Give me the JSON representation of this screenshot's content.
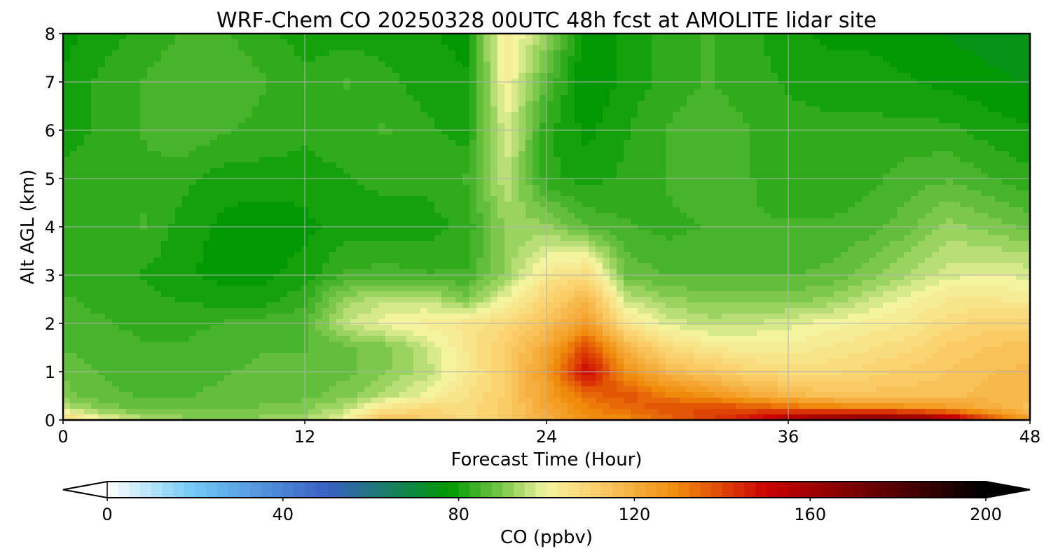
{
  "chart_data": {
    "type": "heatmap",
    "title": "WRF-Chem CO  20250328 00UTC 48h fcst at AMOLITE lidar site",
    "xlabel": "Forecast Time (Hour)",
    "ylabel": "Alt AGL (km)",
    "xlim": [
      0,
      48
    ],
    "ylim": [
      0,
      8
    ],
    "xticks": [
      0,
      12,
      24,
      36,
      48
    ],
    "yticks": [
      0,
      1,
      2,
      3,
      4,
      5,
      6,
      7,
      8
    ],
    "grid": true,
    "colorbar": {
      "label": "CO  (ppbv)",
      "min": 0,
      "max": 200,
      "ticks": [
        0,
        40,
        80,
        120,
        160,
        200
      ],
      "extend": "both",
      "stops": [
        {
          "v": 0,
          "c": "#ffffff"
        },
        {
          "v": 20,
          "c": "#6fc8f5"
        },
        {
          "v": 50,
          "c": "#3a5fc4"
        },
        {
          "v": 70,
          "c": "#0b8a3c"
        },
        {
          "v": 78,
          "c": "#009900"
        },
        {
          "v": 90,
          "c": "#7cc84a"
        },
        {
          "v": 100,
          "c": "#f4f4a0"
        },
        {
          "v": 110,
          "c": "#fbd472"
        },
        {
          "v": 130,
          "c": "#f08a0a"
        },
        {
          "v": 150,
          "c": "#cc0000"
        },
        {
          "v": 170,
          "c": "#7a0000"
        },
        {
          "v": 200,
          "c": "#000000"
        }
      ]
    },
    "field": {
      "x": [
        0,
        2,
        4,
        6,
        8,
        10,
        12,
        14,
        16,
        18,
        20,
        22,
        24,
        26,
        28,
        30,
        32,
        34,
        36,
        38,
        40,
        42,
        44,
        46,
        48
      ],
      "y": [
        0,
        0.25,
        0.5,
        1,
        1.5,
        2,
        2.5,
        3,
        4,
        5,
        6,
        7,
        8
      ],
      "values": [
        [
          110,
          100,
          95,
          92,
          91,
          92,
          94,
          100,
          115,
          112,
          108,
          112,
          120,
          128,
          130,
          135,
          140,
          148,
          160,
          168,
          172,
          170,
          160,
          140,
          125
        ],
        [
          95,
          90,
          88,
          88,
          88,
          89,
          90,
          95,
          105,
          108,
          108,
          112,
          122,
          130,
          135,
          138,
          140,
          138,
          135,
          132,
          130,
          128,
          125,
          120,
          115
        ],
        [
          90,
          87,
          86,
          86,
          87,
          88,
          88,
          90,
          95,
          100,
          106,
          112,
          124,
          135,
          138,
          132,
          128,
          122,
          118,
          115,
          115,
          115,
          115,
          118,
          118
        ],
        [
          88,
          86,
          85,
          85,
          86,
          87,
          87,
          88,
          91,
          95,
          103,
          112,
          125,
          150,
          128,
          118,
          114,
          110,
          108,
          108,
          110,
          112,
          114,
          116,
          117
        ],
        [
          86,
          85,
          84,
          84,
          85,
          86,
          86,
          88,
          90,
          96,
          104,
          112,
          122,
          140,
          118,
          108,
          104,
          102,
          102,
          104,
          106,
          108,
          112,
          114,
          115
        ],
        [
          85,
          84,
          83,
          83,
          84,
          85,
          86,
          96,
          100,
          102,
          105,
          108,
          115,
          125,
          105,
          98,
          95,
          96,
          98,
          100,
          102,
          104,
          108,
          110,
          110
        ],
        [
          84,
          83,
          82,
          81,
          80,
          80,
          83,
          92,
          96,
          96,
          90,
          100,
          110,
          118,
          96,
          92,
          90,
          90,
          90,
          92,
          96,
          100,
          104,
          104,
          103
        ],
        [
          83,
          82,
          81,
          79,
          78,
          78,
          80,
          84,
          85,
          84,
          84,
          92,
          104,
          108,
          88,
          86,
          86,
          86,
          86,
          87,
          90,
          94,
          98,
          99,
          98
        ],
        [
          82,
          82,
          84,
          80,
          78,
          77,
          78,
          80,
          80,
          80,
          82,
          92,
          92,
          86,
          84,
          83,
          84,
          84,
          84,
          84,
          85,
          88,
          92,
          90,
          88
        ],
        [
          82,
          82,
          83,
          82,
          80,
          80,
          80,
          81,
          82,
          82,
          84,
          96,
          82,
          80,
          82,
          84,
          86,
          84,
          82,
          82,
          83,
          85,
          86,
          84,
          82
        ],
        [
          80,
          82,
          84,
          86,
          84,
          83,
          82,
          83,
          84,
          82,
          80,
          98,
          82,
          78,
          81,
          84,
          86,
          84,
          82,
          82,
          82,
          82,
          82,
          80,
          79
        ],
        [
          79,
          82,
          84,
          86,
          86,
          84,
          82,
          84,
          82,
          80,
          79,
          102,
          86,
          76,
          80,
          82,
          84,
          82,
          81,
          80,
          80,
          79,
          78,
          77,
          76
        ],
        [
          78,
          80,
          82,
          84,
          84,
          82,
          80,
          80,
          80,
          79,
          78,
          104,
          92,
          76,
          80,
          82,
          84,
          82,
          80,
          78,
          78,
          77,
          76,
          75,
          74
        ]
      ]
    }
  }
}
